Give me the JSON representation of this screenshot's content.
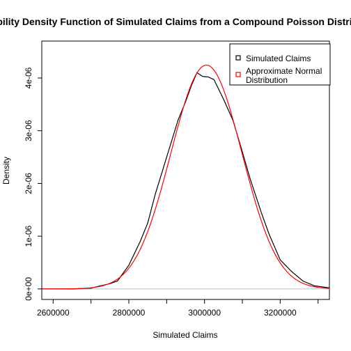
{
  "chart_data": {
    "type": "line",
    "title": "Probability Density Function of Simulated Claims from a Compound Poisson Distribution",
    "xlabel": "Simulated Claims",
    "ylabel": "Density",
    "xlim": [
      2570000,
      3330000
    ],
    "ylim": [
      -2e-07,
      4.7e-06
    ],
    "x_ticks": [
      2600000,
      2800000,
      3000000,
      3200000
    ],
    "x_tick_labels": [
      "2600000",
      "2800000",
      "3000000",
      "3200000"
    ],
    "y_ticks": [
      0,
      1e-06,
      2e-06,
      3e-06,
      4e-06
    ],
    "y_tick_labels": [
      "0e+00",
      "1e-06",
      "2e-06",
      "3e-06",
      "4e-06"
    ],
    "legend_position": "top-right",
    "grid": false,
    "baseline": {
      "y": 0,
      "color": "#bebebe"
    },
    "series": [
      {
        "name": "Simulated Claims",
        "color": "#000000",
        "points": [
          [
            2570000,
            0
          ],
          [
            2600000,
            0.0
          ],
          [
            2650000,
            0.0
          ],
          [
            2700000,
            1.5e-08
          ],
          [
            2720000,
            5e-08
          ],
          [
            2750000,
            1e-07
          ],
          [
            2770000,
            1.5e-07
          ],
          [
            2800000,
            4.5e-07
          ],
          [
            2830000,
            9e-07
          ],
          [
            2850000,
            1.25e-06
          ],
          [
            2870000,
            1.8e-06
          ],
          [
            2900000,
            2.5e-06
          ],
          [
            2915000,
            2.85e-06
          ],
          [
            2930000,
            3.2e-06
          ],
          [
            2950000,
            3.55e-06
          ],
          [
            2965000,
            3.85e-06
          ],
          [
            2980000,
            4.1e-06
          ],
          [
            2995000,
            4.03e-06
          ],
          [
            3010000,
            4.02e-06
          ],
          [
            3025000,
            3.97e-06
          ],
          [
            3050000,
            3.6e-06
          ],
          [
            3075000,
            3.2e-06
          ],
          [
            3100000,
            2.6e-06
          ],
          [
            3120000,
            2.1e-06
          ],
          [
            3150000,
            1.45e-06
          ],
          [
            3170000,
            1.05e-06
          ],
          [
            3200000,
            5.5e-07
          ],
          [
            3230000,
            3.3e-07
          ],
          [
            3260000,
            1.5e-07
          ],
          [
            3290000,
            6e-08
          ],
          [
            3330000,
            2e-08
          ]
        ]
      },
      {
        "name": "Approximate Normal Distribution",
        "color": "#ff0000",
        "mean": 3005000,
        "sd": 94000
      }
    ]
  }
}
